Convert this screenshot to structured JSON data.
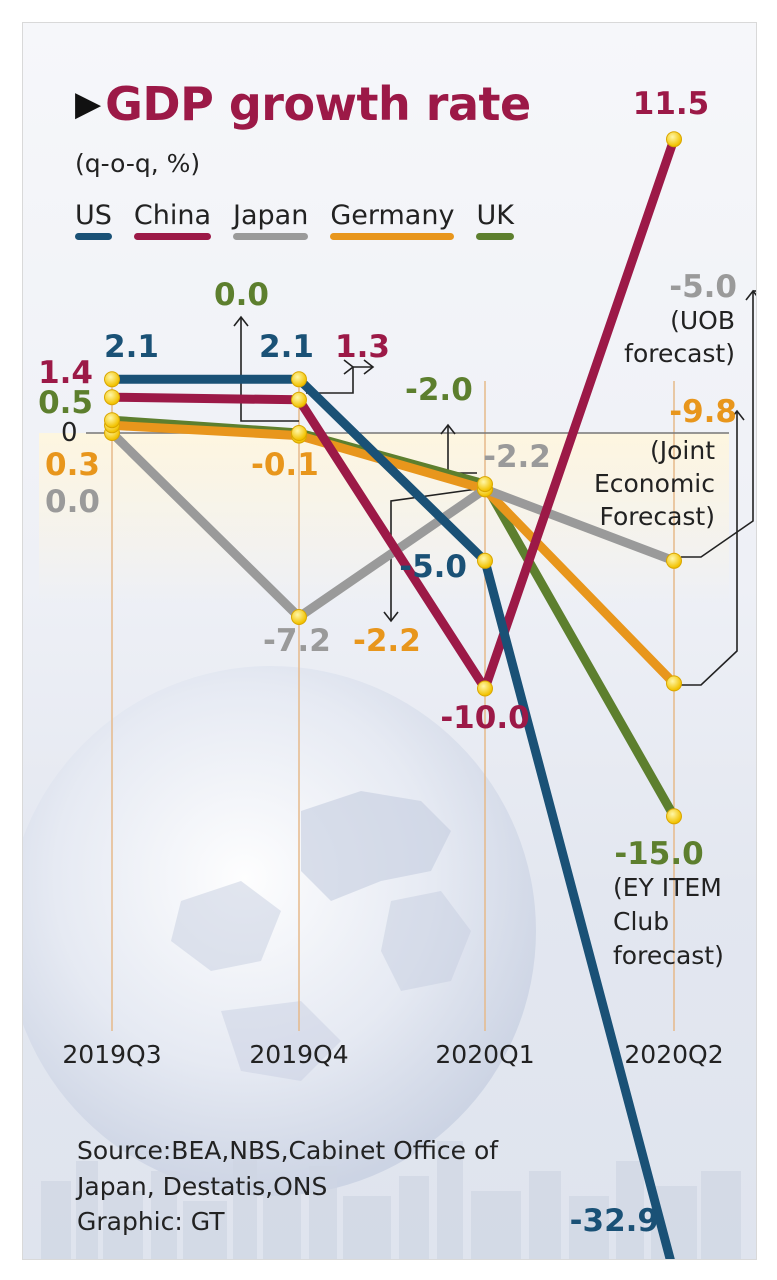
{
  "title": "GDP growth rate",
  "subtitle": "(q-o-q, %)",
  "legend": [
    {
      "name": "US",
      "color": "#1a5176"
    },
    {
      "name": "China",
      "color": "#9c1947"
    },
    {
      "name": "Japan",
      "color": "#9a9a9a"
    },
    {
      "name": "Germany",
      "color": "#e8961c"
    },
    {
      "name": "UK",
      "color": "#5d7f2e"
    }
  ],
  "source": [
    "Source:BEA,NBS,Cabinet Office of",
    "Japan, Destatis,ONS",
    "Graphic: GT"
  ],
  "chart_data": {
    "type": "line",
    "categories": [
      "2019Q3",
      "2019Q4",
      "2020Q1",
      "2020Q2"
    ],
    "zero_label": "0",
    "series": [
      {
        "name": "US",
        "color": "#1a5176",
        "values": [
          2.1,
          2.1,
          -5.0,
          -32.9
        ],
        "labels": [
          "2.1",
          "2.1",
          "-5.0",
          "-32.9"
        ]
      },
      {
        "name": "China",
        "color": "#9c1947",
        "values": [
          1.4,
          1.3,
          -10.0,
          11.5
        ],
        "labels": [
          "1.4",
          "1.3",
          "-10.0",
          "11.5"
        ]
      },
      {
        "name": "Japan",
        "color": "#9a9a9a",
        "values": [
          0.0,
          -7.2,
          -2.2,
          -5.0
        ],
        "labels": [
          "0.0",
          "-7.2",
          "-2.2",
          "-5.0"
        ]
      },
      {
        "name": "Germany",
        "color": "#e8961c",
        "values": [
          0.3,
          -0.1,
          -2.2,
          -9.8
        ],
        "labels": [
          "0.3",
          "-0.1",
          "-2.2",
          "-9.8"
        ]
      },
      {
        "name": "UK",
        "color": "#5d7f2e",
        "values": [
          0.5,
          0.0,
          -2.0,
          -15.0
        ],
        "labels": [
          "0.5",
          "0.0",
          "-2.0",
          "-15.0"
        ]
      }
    ],
    "annotations": {
      "uob": [
        "(UOB",
        "forecast)"
      ],
      "joint": [
        "(Joint",
        "Economic",
        "Forecast)"
      ],
      "ey": [
        "(EY ITEM",
        "Club",
        "forecast)"
      ]
    }
  }
}
